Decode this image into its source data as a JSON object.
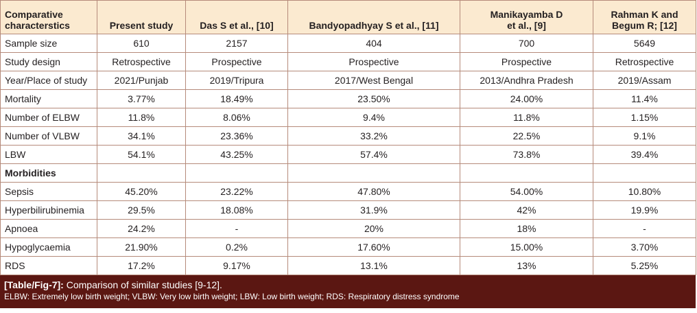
{
  "table": {
    "headers": [
      "Comparative\ncharacterstics",
      "Present study",
      "Das S et al., [10]",
      "Bandyopadhyay S et al., [11]",
      "Manikayamba D\net al., [9]",
      "Rahman K and\nBegum R; [12]"
    ],
    "rows": [
      {
        "label": "Sample size",
        "values": [
          "610",
          "2157",
          "404",
          "700",
          "5649"
        ]
      },
      {
        "label": "Study design",
        "values": [
          "Retrospective",
          "Prospective",
          "Prospective",
          "Prospective",
          "Retrospective"
        ]
      },
      {
        "label": "Year/Place of study",
        "values": [
          "2021/Punjab",
          "2019/Tripura",
          "2017/West Bengal",
          "2013/Andhra Pradesh",
          "2019/Assam"
        ]
      },
      {
        "label": "Mortality",
        "values": [
          "3.77%",
          "18.49%",
          "23.50%",
          "24.00%",
          "11.4%"
        ]
      },
      {
        "label": "Number of ELBW",
        "values": [
          "11.8%",
          "8.06%",
          "9.4%",
          "11.8%",
          "1.15%"
        ]
      },
      {
        "label": "Number of VLBW",
        "values": [
          "34.1%",
          "23.36%",
          "33.2%",
          "22.5%",
          "9.1%"
        ]
      },
      {
        "label": "LBW",
        "values": [
          "54.1%",
          "43.25%",
          "57.4%",
          "73.8%",
          "39.4%"
        ]
      },
      {
        "label": "Morbidities",
        "values": [
          "",
          "",
          "",
          "",
          ""
        ],
        "section": true
      },
      {
        "label": "Sepsis",
        "values": [
          "45.20%",
          "23.22%",
          "47.80%",
          "54.00%",
          "10.80%"
        ]
      },
      {
        "label": "Hyperbilirubinemia",
        "values": [
          "29.5%",
          "18.08%",
          "31.9%",
          "42%",
          "19.9%"
        ]
      },
      {
        "label": "Apnoea",
        "values": [
          "24.2%",
          "-",
          "20%",
          "18%",
          "-"
        ]
      },
      {
        "label": "Hypoglycaemia",
        "values": [
          "21.90%",
          "0.2%",
          "17.60%",
          "15.00%",
          "3.70%"
        ]
      },
      {
        "label": "RDS",
        "values": [
          "17.2%",
          "9.17%",
          "13.1%",
          "13%",
          "5.25%"
        ]
      }
    ]
  },
  "caption": {
    "tag": "[Table/Fig-7]:",
    "title": " Comparison of similar studies [9-12].",
    "footnote": "ELBW: Extremely low birth weight; VLBW: Very low birth weight; LBW: Low birth weight; RDS: Respiratory distress syndrome"
  },
  "colors": {
    "header_bg": "#fbead0",
    "border": "#b58a7a",
    "caption_bg": "#5b1712"
  }
}
